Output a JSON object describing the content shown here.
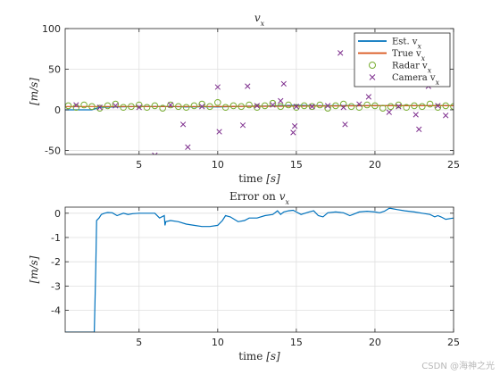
{
  "chart_data": [
    {
      "type": "line",
      "title": "v_x",
      "title_parts": {
        "base": "v",
        "sub": "x"
      },
      "xlabel": "time",
      "xlabel_unit": "[s]",
      "ylabel": "[m/s]",
      "xlim": [
        0.3,
        25
      ],
      "ylim": [
        -55,
        100
      ],
      "xticks": [
        5,
        10,
        15,
        20,
        25
      ],
      "yticks": [
        -50,
        0,
        50,
        100
      ],
      "grid": true,
      "legend": "top-right",
      "legend_entries": [
        {
          "label": "Est. v_x",
          "base": "Est. v",
          "sub": "x",
          "color": "#0072BD",
          "marker": "line"
        },
        {
          "label": "True v_x",
          "base": "True v",
          "sub": "x",
          "color": "#D95319",
          "marker": "line"
        },
        {
          "label": "Radar v_x",
          "base": "Radar v",
          "sub": "x",
          "color": "#77AC30",
          "marker": "circle"
        },
        {
          "label": "Camera v_x",
          "base": "Camera v",
          "sub": "x",
          "color": "#7E2F8E",
          "marker": "x"
        }
      ],
      "series": [
        {
          "name": "Est. v_x",
          "color": "#0072BD",
          "marker": "line",
          "x": [
            0.3,
            2.0,
            2.5,
            3.5,
            5,
            6,
            7,
            8,
            9,
            10,
            11,
            12,
            13,
            14,
            15,
            16,
            17,
            18,
            19,
            20,
            21,
            22,
            23,
            24,
            25
          ],
          "y": [
            0,
            0,
            3,
            3.5,
            4,
            4,
            4,
            3.5,
            3.8,
            3.5,
            4,
            4.5,
            4.5,
            5,
            5.5,
            5,
            5,
            5,
            5,
            5,
            5,
            5,
            5,
            5,
            5
          ]
        },
        {
          "name": "True v_x",
          "color": "#D95319",
          "marker": "line",
          "x": [
            0.3,
            2.5,
            5,
            10,
            15,
            20,
            25
          ],
          "y": [
            4,
            4,
            4,
            4,
            4.5,
            5,
            5
          ]
        },
        {
          "name": "Radar v_x",
          "color": "#77AC30",
          "marker": "circle",
          "x": [
            0.5,
            1.0,
            1.5,
            2.0,
            2.5,
            3.0,
            3.5,
            4.0,
            4.5,
            5.0,
            5.5,
            6.0,
            6.5,
            7.0,
            7.5,
            8.0,
            8.5,
            9.0,
            9.5,
            10.0,
            10.5,
            11.0,
            11.5,
            12.0,
            12.5,
            13.0,
            13.5,
            14.0,
            14.5,
            15.0,
            15.5,
            16.0,
            16.5,
            17.0,
            17.5,
            18.0,
            18.5,
            19.0,
            19.5,
            20.0,
            20.5,
            21.0,
            21.5,
            22.0,
            22.5,
            23.0,
            23.5,
            24.0,
            24.5,
            25.0
          ],
          "y": [
            5,
            3,
            6,
            4,
            2,
            5,
            7,
            3,
            4,
            6,
            3,
            5,
            2,
            6,
            4,
            3,
            5,
            7,
            4,
            9,
            3,
            5,
            4,
            6,
            3,
            5,
            8,
            4,
            6,
            3,
            5,
            4,
            6,
            2,
            5,
            7,
            4,
            3,
            6,
            5,
            2,
            4,
            6,
            3,
            5,
            4,
            7,
            3,
            5,
            4
          ]
        },
        {
          "name": "Camera v_x",
          "color": "#7E2F8E",
          "marker": "x",
          "x": [
            2.5,
            6.0,
            7.8,
            8.1,
            10.0,
            10.1,
            11.6,
            11.9,
            14.0,
            14.2,
            14.8,
            14.9,
            15.0,
            17.8,
            18.0,
            18.1,
            19.6,
            20.9,
            22.6,
            22.8,
            23.4,
            24.5,
            1.0,
            3.5,
            5.0,
            7.0,
            9.0,
            12.5,
            13.5,
            16.0,
            17.0,
            19.0,
            21.5,
            24.0
          ],
          "y": [
            3,
            -56,
            -18,
            -46,
            28,
            -27,
            -19,
            29,
            11,
            32,
            -28,
            -20,
            4,
            70,
            3,
            -18,
            16,
            -3,
            -6,
            -24,
            29,
            -7,
            6,
            5,
            3,
            6,
            4,
            5,
            6,
            4,
            5,
            7,
            4,
            5
          ]
        }
      ]
    },
    {
      "type": "line",
      "title": "Error on v_x",
      "title_parts": {
        "base": "Error on v",
        "sub": "x"
      },
      "xlabel": "time",
      "xlabel_unit": "[s]",
      "ylabel": "[m/s]",
      "xlim": [
        0.3,
        25
      ],
      "ylim": [
        -4.9,
        0.25
      ],
      "xticks": [
        5,
        10,
        15,
        20,
        25
      ],
      "yticks": [
        -4,
        -3,
        -2,
        -1,
        0
      ],
      "grid": true,
      "series": [
        {
          "name": "Error on v_x",
          "color": "#0072BD",
          "x": [
            0.3,
            2.15,
            2.25,
            2.3,
            2.45,
            2.6,
            2.8,
            3.0,
            3.3,
            3.6,
            4.0,
            4.3,
            4.6,
            5.0,
            5.5,
            6.0,
            6.3,
            6.6,
            6.65,
            6.7,
            7.0,
            7.5,
            8.0,
            8.5,
            9.0,
            9.5,
            10.0,
            10.3,
            10.5,
            10.8,
            11.3,
            11.7,
            12.0,
            12.5,
            13.0,
            13.5,
            13.8,
            14.0,
            14.2,
            14.5,
            14.8,
            15.0,
            15.3,
            15.8,
            16.1,
            16.4,
            16.7,
            17.0,
            17.5,
            18.0,
            18.4,
            18.6,
            19.0,
            19.5,
            20.0,
            20.3,
            20.6,
            20.9,
            21.0,
            21.4,
            21.9,
            22.5,
            23.0,
            23.5,
            23.8,
            24.0,
            24.2,
            24.5,
            25.0
          ],
          "y": [
            -4.9,
            -4.9,
            -2.2,
            -0.3,
            -0.2,
            -0.05,
            0.0,
            0.03,
            0.02,
            -0.1,
            0.0,
            -0.05,
            -0.02,
            0.0,
            0.0,
            0.0,
            -0.2,
            -0.1,
            -0.5,
            -0.35,
            -0.3,
            -0.35,
            -0.45,
            -0.5,
            -0.55,
            -0.55,
            -0.5,
            -0.3,
            -0.1,
            -0.15,
            -0.35,
            -0.3,
            -0.2,
            -0.2,
            -0.1,
            -0.05,
            0.1,
            -0.05,
            0.05,
            0.1,
            0.12,
            0.05,
            -0.05,
            0.05,
            0.1,
            -0.1,
            -0.15,
            0.02,
            0.05,
            0.02,
            -0.1,
            -0.05,
            0.05,
            0.08,
            0.05,
            0.02,
            0.08,
            0.2,
            0.2,
            0.15,
            0.1,
            0.05,
            0.0,
            -0.05,
            -0.15,
            -0.1,
            -0.15,
            -0.25,
            -0.2
          ]
        }
      ]
    }
  ],
  "watermark": "CSDN @海神之光"
}
